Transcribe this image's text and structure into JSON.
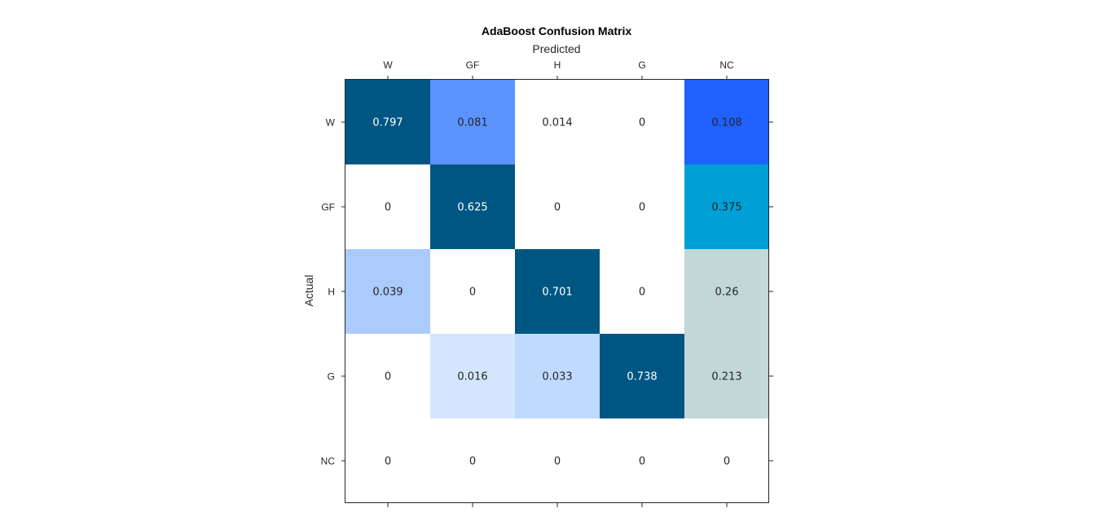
{
  "chart_data": {
    "type": "heatmap",
    "title": "AdaBoost Confusion Matrix",
    "xlabel": "Predicted",
    "ylabel": "Actual",
    "x_categories": [
      "W",
      "GF",
      "H",
      "G",
      "NC"
    ],
    "y_categories": [
      "W",
      "GF",
      "H",
      "G",
      "NC"
    ],
    "x_tick_position": "top",
    "values": [
      [
        0.797,
        0.081,
        0.014,
        0,
        0.108
      ],
      [
        0,
        0.625,
        0,
        0,
        0.375
      ],
      [
        0.039,
        0,
        0.701,
        0,
        0.26
      ],
      [
        0,
        0.016,
        0.033,
        0.738,
        0.213
      ],
      [
        0,
        0,
        0,
        0,
        0
      ]
    ],
    "cell_colors": [
      [
        "#005682",
        "#5b92fe",
        "#ffffff",
        "#ffffff",
        "#1f61ff"
      ],
      [
        "#ffffff",
        "#005682",
        "#ffffff",
        "#ffffff",
        "#009fd6"
      ],
      [
        "#abcbfd",
        "#ffffff",
        "#005682",
        "#ffffff",
        "#c2d7d7"
      ],
      [
        "#ffffff",
        "#d3e6fe",
        "#bfdafd",
        "#005682",
        "#c2d7d7"
      ],
      [
        "#ffffff",
        "#ffffff",
        "#ffffff",
        "#ffffff",
        "#ffffff"
      ]
    ],
    "label_colors": [
      [
        "#ffffff",
        "#262626",
        "#262626",
        "#262626",
        "#262626"
      ],
      [
        "#262626",
        "#ffffff",
        "#262626",
        "#262626",
        "#262626"
      ],
      [
        "#262626",
        "#262626",
        "#ffffff",
        "#262626",
        "#262626"
      ],
      [
        "#262626",
        "#262626",
        "#262626",
        "#ffffff",
        "#262626"
      ],
      [
        "#262626",
        "#262626",
        "#262626",
        "#262626",
        "#262626"
      ]
    ],
    "grid": false,
    "legend": "none"
  }
}
